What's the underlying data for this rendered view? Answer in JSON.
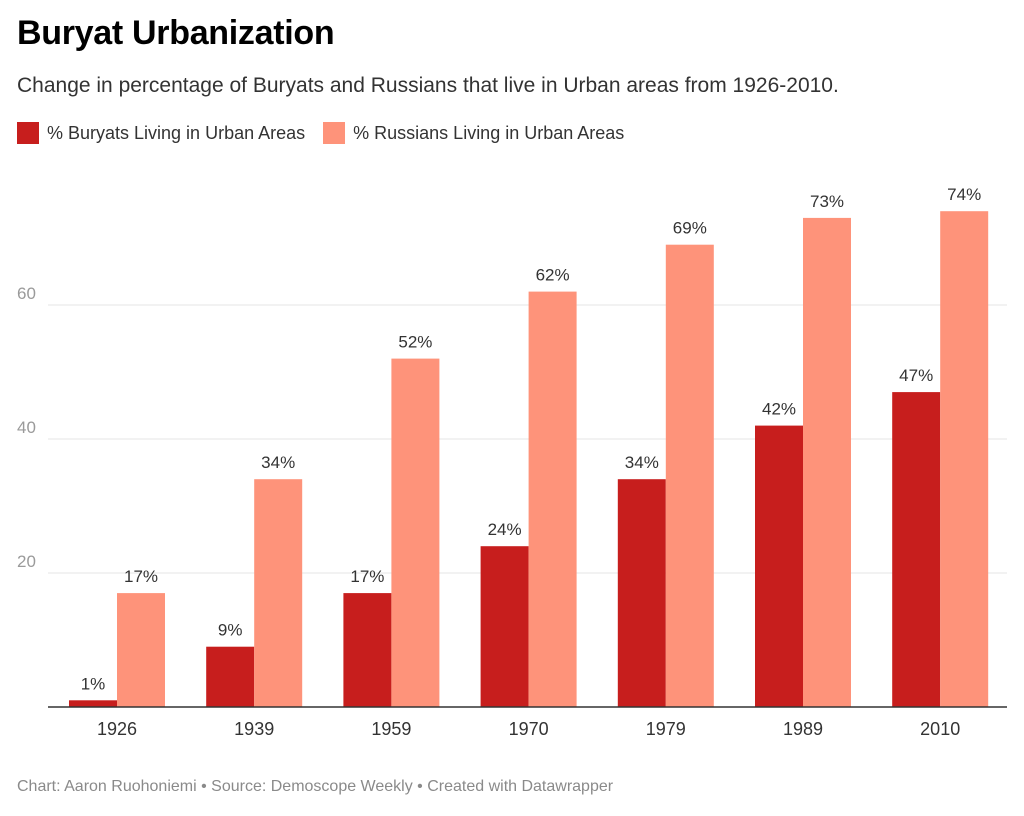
{
  "title": "Buryat Urbanization",
  "subtitle": "Change in percentage of Buryats and Russians that live in Urban areas from 1926-2010.",
  "footer": "Chart: Aaron Ruohoniemi • Source: Demoscope Weekly • Created with Datawrapper",
  "colors": {
    "buryats": "#c71e1d",
    "russians": "#fe937a",
    "grid": "#e6e6e6",
    "axis": "#333333",
    "tick": "#9a9a9a"
  },
  "chart_data": {
    "type": "bar",
    "title": "Buryat Urbanization",
    "subtitle": "Change in percentage of Buryats and Russians that live in Urban areas from 1926-2010.",
    "categories": [
      "1926",
      "1939",
      "1959",
      "1970",
      "1979",
      "1989",
      "2010"
    ],
    "series": [
      {
        "name": "% Buryats Living in Urban Areas",
        "values": [
          1,
          9,
          17,
          24,
          34,
          42,
          47
        ],
        "labels": [
          "1%",
          "9%",
          "17%",
          "24%",
          "34%",
          "42%",
          "47%"
        ]
      },
      {
        "name": "% Russians Living in Urban Areas",
        "values": [
          17,
          34,
          52,
          62,
          69,
          73,
          74
        ],
        "labels": [
          "17%",
          "34%",
          "52%",
          "62%",
          "69%",
          "73%",
          "74%"
        ]
      }
    ],
    "yticks": [
      "20",
      "40",
      "60"
    ],
    "ylim": [
      0,
      80
    ],
    "xlabel": "",
    "ylabel": "",
    "grid": true,
    "legend": "top-left"
  }
}
